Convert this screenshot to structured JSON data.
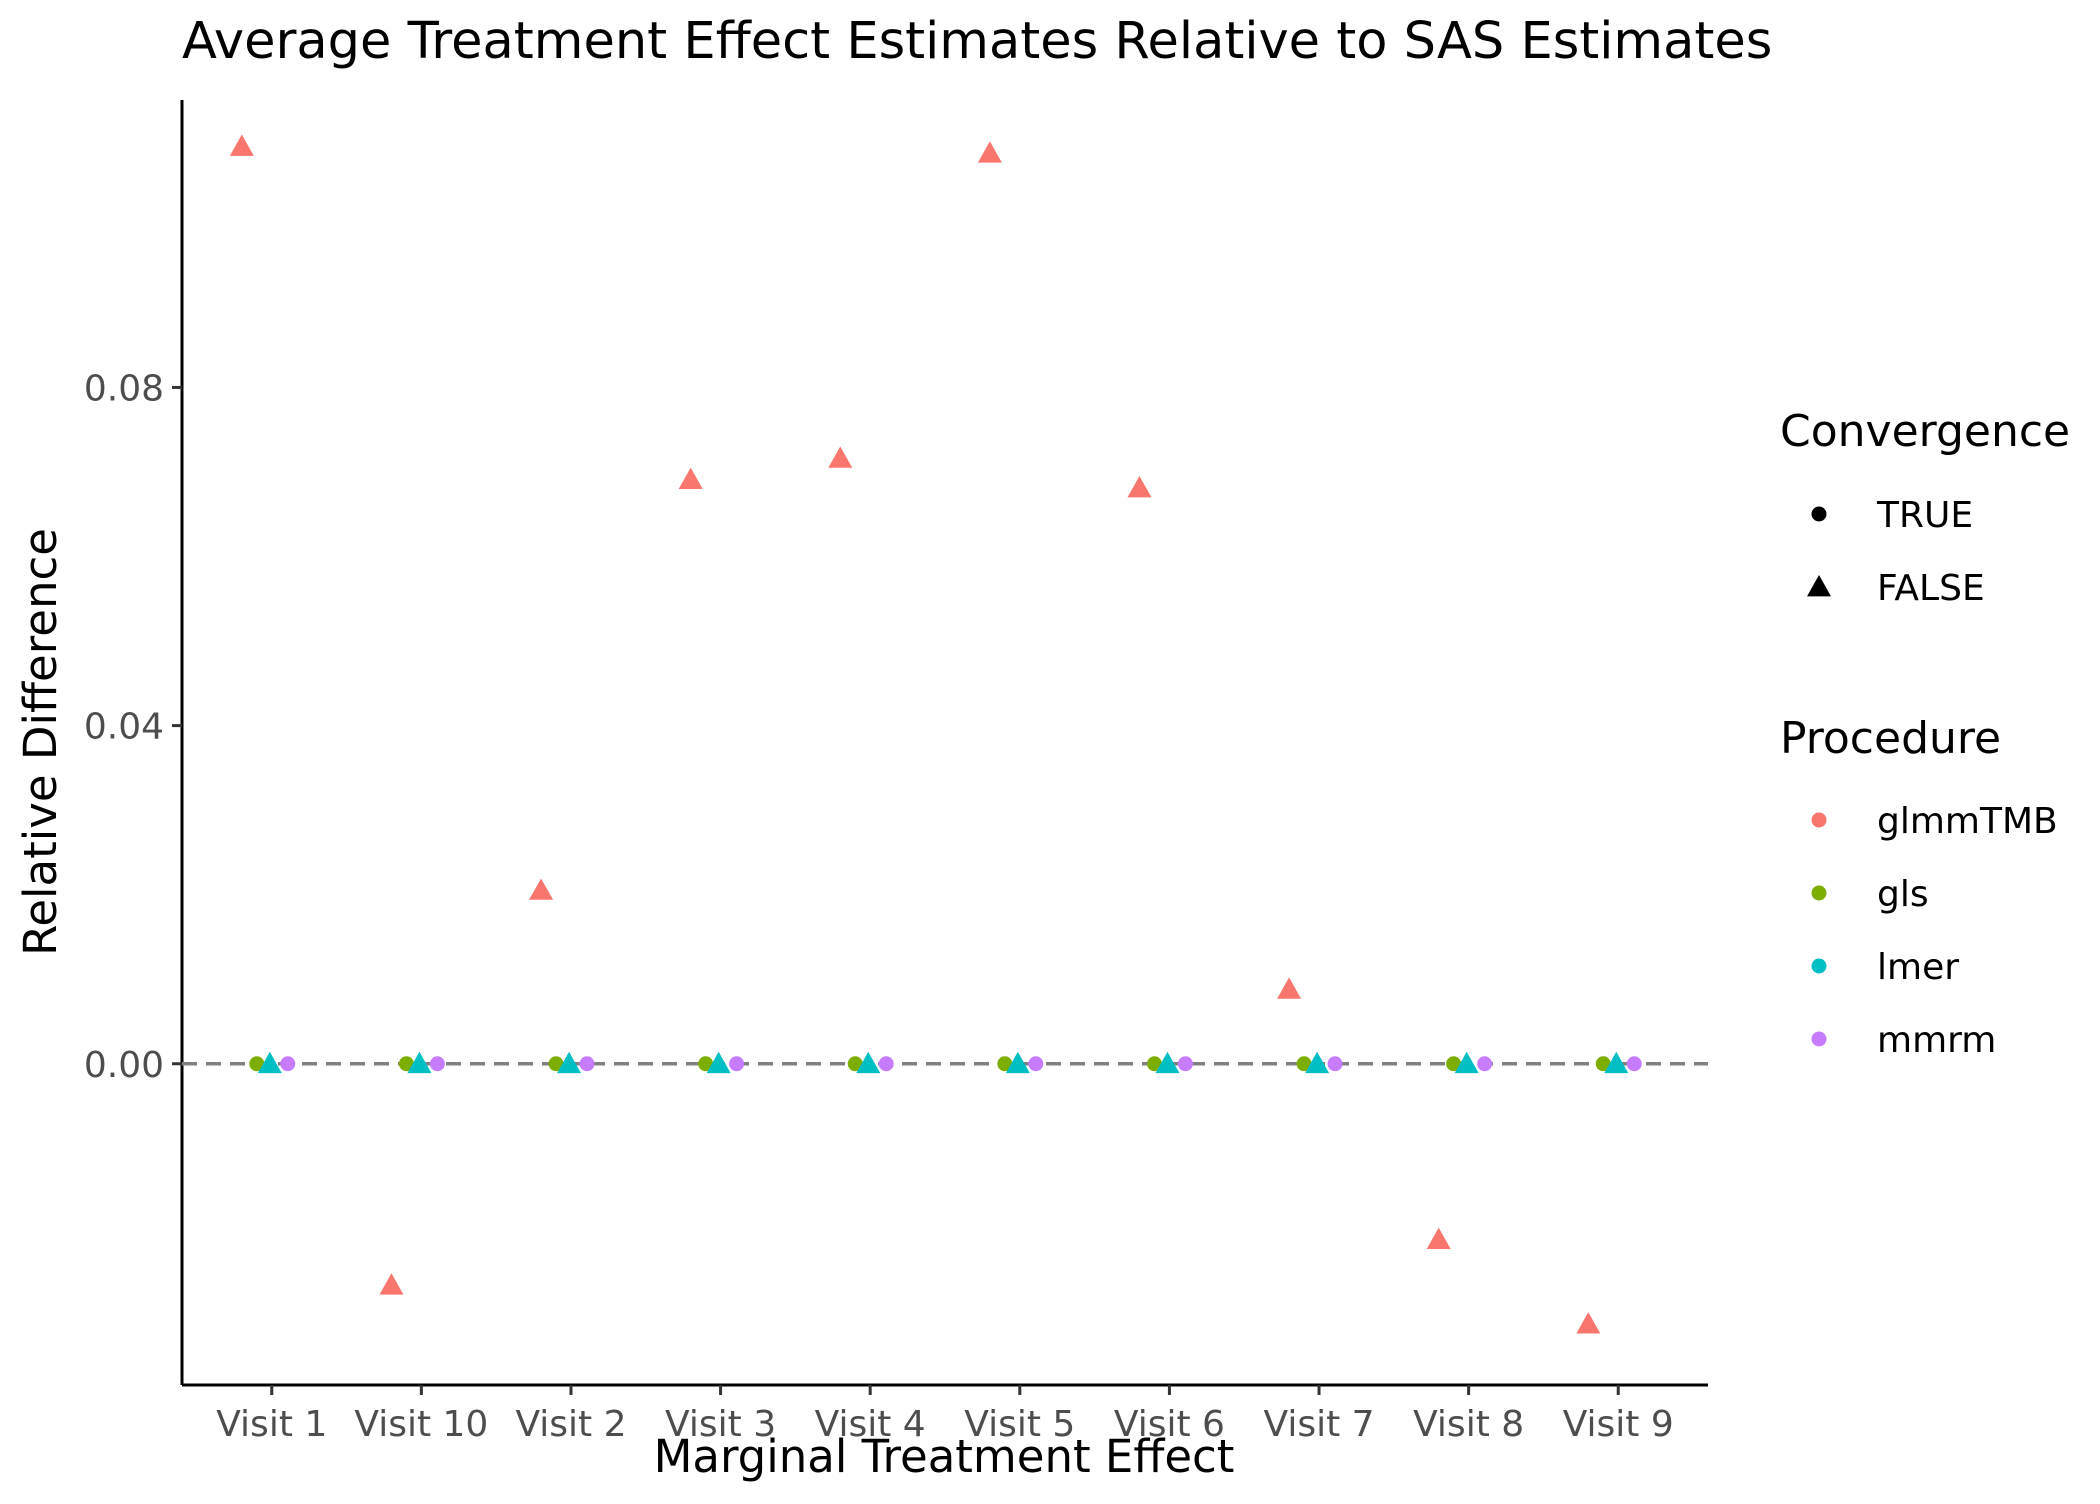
{
  "chart_data": {
    "type": "scatter",
    "title": "Average Treatment Effect Estimates Relative to SAS Estimates",
    "xlabel": "Marginal Treatment Effect",
    "ylabel": "Relative Difference",
    "categories": [
      "Visit 1",
      "Visit 10",
      "Visit 2",
      "Visit 3",
      "Visit 4",
      "Visit 5",
      "Visit 6",
      "Visit 7",
      "Visit 8",
      "Visit 9"
    ],
    "yticks": [
      0.0,
      0.04,
      0.08
    ],
    "ytick_labels": [
      "0.00",
      "0.04",
      "0.08"
    ],
    "ylim": [
      -0.038,
      0.114
    ],
    "reference_line": 0,
    "grid": false,
    "legend_position": "right",
    "convergence_legend": {
      "title": "Convergence",
      "items": [
        {
          "label": "TRUE",
          "shape": "circle"
        },
        {
          "label": "FALSE",
          "shape": "triangle"
        }
      ]
    },
    "procedure_legend": {
      "title": "Procedure",
      "items": [
        {
          "label": "glmmTMB",
          "color": "#F8766D"
        },
        {
          "label": "gls",
          "color": "#7CAE00"
        },
        {
          "label": "lmer",
          "color": "#00BFC4"
        },
        {
          "label": "mmrm",
          "color": "#C77CFF"
        }
      ]
    },
    "series": [
      {
        "name": "glmmTMB",
        "color": "#F8766D",
        "convergence": [
          false,
          false,
          false,
          false,
          false,
          false,
          false,
          false,
          false,
          false
        ],
        "values": [
          0.1085,
          -0.0262,
          0.0205,
          0.0691,
          0.0716,
          0.1077,
          0.0681,
          0.0088,
          -0.0208,
          -0.0308
        ]
      },
      {
        "name": "gls",
        "color": "#7CAE00",
        "convergence": [
          true,
          true,
          true,
          true,
          true,
          true,
          true,
          true,
          true,
          true
        ],
        "values": [
          0,
          0,
          0,
          0,
          0,
          0,
          0,
          0,
          0,
          0
        ]
      },
      {
        "name": "lmer",
        "color": "#00BFC4",
        "convergence": [
          false,
          false,
          false,
          false,
          false,
          false,
          false,
          false,
          false,
          false
        ],
        "values": [
          0,
          0,
          0,
          0,
          0,
          0,
          0,
          0,
          0,
          0
        ]
      },
      {
        "name": "mmrm",
        "color": "#C77CFF",
        "convergence": [
          true,
          true,
          true,
          true,
          true,
          true,
          true,
          true,
          true,
          true
        ],
        "values": [
          0,
          0,
          0,
          0,
          0,
          0,
          0,
          0,
          0,
          0
        ]
      }
    ]
  }
}
